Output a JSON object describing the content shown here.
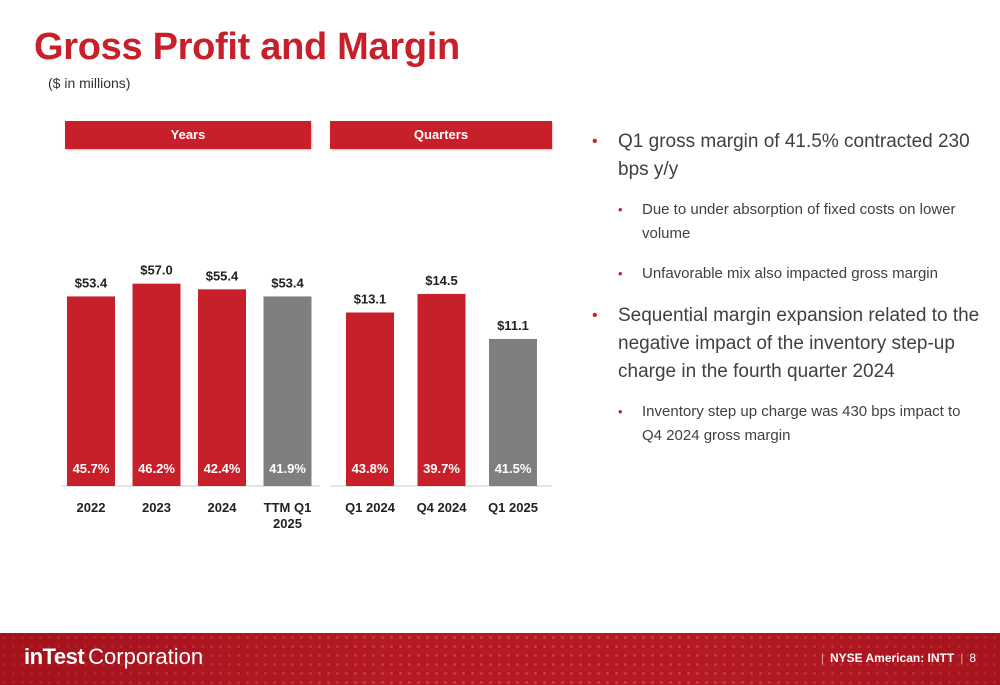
{
  "header": {
    "title": "Gross Profit and Margin",
    "subtitle": "($ in millions)"
  },
  "chart_data": [
    {
      "type": "bar",
      "group_label": "Years",
      "categories": [
        "2022",
        "2023",
        "2024",
        "TTM Q1 2025"
      ],
      "values": [
        53.4,
        57.0,
        55.4,
        53.4
      ],
      "value_labels": [
        "$53.4",
        "$57.0",
        "$55.4",
        "$53.4"
      ],
      "margin_labels": [
        "45.7%",
        "46.2%",
        "42.4%",
        "41.9%"
      ],
      "bar_colors": [
        "#c8202a",
        "#c8202a",
        "#c8202a",
        "#7f7f7f"
      ],
      "ylim": [
        0,
        60
      ]
    },
    {
      "type": "bar",
      "group_label": "Quarters",
      "categories": [
        "Q1 2024",
        "Q4 2024",
        "Q1 2025"
      ],
      "values": [
        13.1,
        14.5,
        11.1
      ],
      "value_labels": [
        "$13.1",
        "$14.5",
        "$11.1"
      ],
      "margin_labels": [
        "43.8%",
        "39.7%",
        "41.5%"
      ],
      "bar_colors": [
        "#c8202a",
        "#c8202a",
        "#7f7f7f"
      ],
      "ylim": [
        0,
        15.1
      ]
    }
  ],
  "bullets": {
    "b1": "Q1 gross margin of 41.5% contracted 230 bps y/y",
    "b1_sub1": "Due to under absorption of fixed costs on lower volume",
    "b1_sub2": "Unfavorable mix also impacted gross margin",
    "b2": "Sequential margin expansion related to the negative impact of the inventory step-up charge in the fourth quarter 2024",
    "b2_sub1": "Inventory step up charge was 430 bps impact to Q4 2024 gross margin"
  },
  "footer": {
    "brand": "inTest",
    "corp": "Corporation",
    "exchange": "NYSE American: INTT",
    "page_number": "8"
  },
  "colors": {
    "accent": "#c8202a",
    "gray_bar": "#7f7f7f"
  }
}
